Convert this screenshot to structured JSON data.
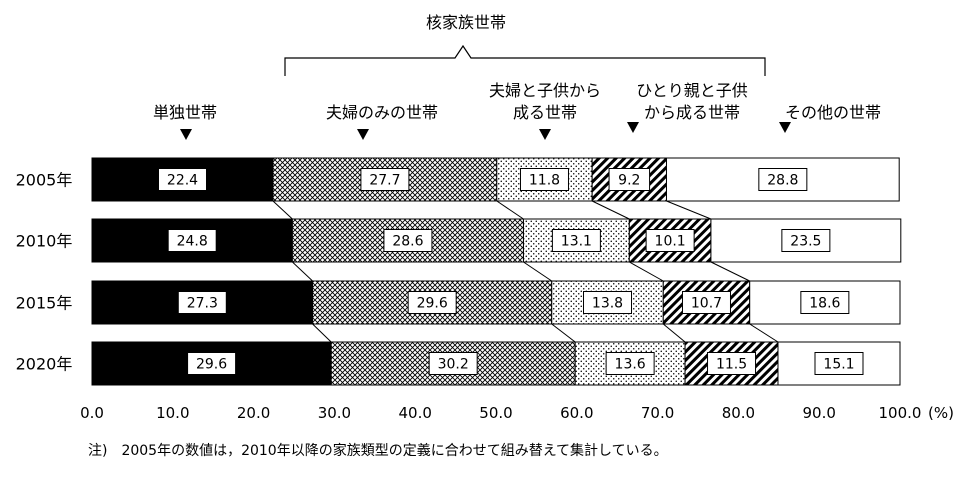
{
  "chart_data": {
    "type": "bar",
    "orientation": "horizontal",
    "stacked": true,
    "xlim": [
      0,
      100
    ],
    "xticks": [
      "0.0",
      "10.0",
      "20.0",
      "30.0",
      "40.0",
      "50.0",
      "60.0",
      "70.0",
      "80.0",
      "90.0",
      "100.0"
    ],
    "unit": "(%)",
    "group_label": "核家族世帯",
    "categories": [
      "2005年",
      "2010年",
      "2015年",
      "2020年"
    ],
    "series": [
      {
        "name": "単独世帯",
        "values": [
          22.4,
          24.8,
          27.3,
          29.6
        ],
        "fill": "black"
      },
      {
        "name": "夫婦のみの世帯",
        "values": [
          27.7,
          28.6,
          29.6,
          30.2
        ],
        "fill": "crosshatch"
      },
      {
        "name": "夫婦と子供から成る世帯",
        "values": [
          11.8,
          13.1,
          13.8,
          13.6
        ],
        "fill": "dots"
      },
      {
        "name": "ひとり親と子供から成る世帯",
        "values": [
          9.2,
          10.1,
          10.7,
          11.5
        ],
        "fill": "diagonal"
      },
      {
        "name": "その他の世帯",
        "values": [
          28.8,
          23.5,
          18.6,
          15.1
        ],
        "fill": "white"
      }
    ],
    "value_labels": [
      [
        "22.4",
        "27.7",
        "11.8",
        "9.2",
        "28.8"
      ],
      [
        "24.8",
        "28.6",
        "13.1",
        "10.1",
        "23.5"
      ],
      [
        "27.3",
        "29.6",
        "13.8",
        "10.7",
        "18.6"
      ],
      [
        "29.6",
        "30.2",
        "13.6",
        "11.5",
        "15.1"
      ]
    ],
    "legend_lines": [
      [
        "単独世帯"
      ],
      [
        "夫婦のみの世帯"
      ],
      [
        "夫婦と子供から",
        "成る世帯"
      ],
      [
        "ひとり親と子供",
        "から成る世帯"
      ],
      [
        "その他の世帯"
      ]
    ],
    "legend_placement": "top",
    "grid": false
  },
  "note": "注)　2005年の数値は，2010年以降の家族類型の定義に合わせて組み替えて集計している。"
}
